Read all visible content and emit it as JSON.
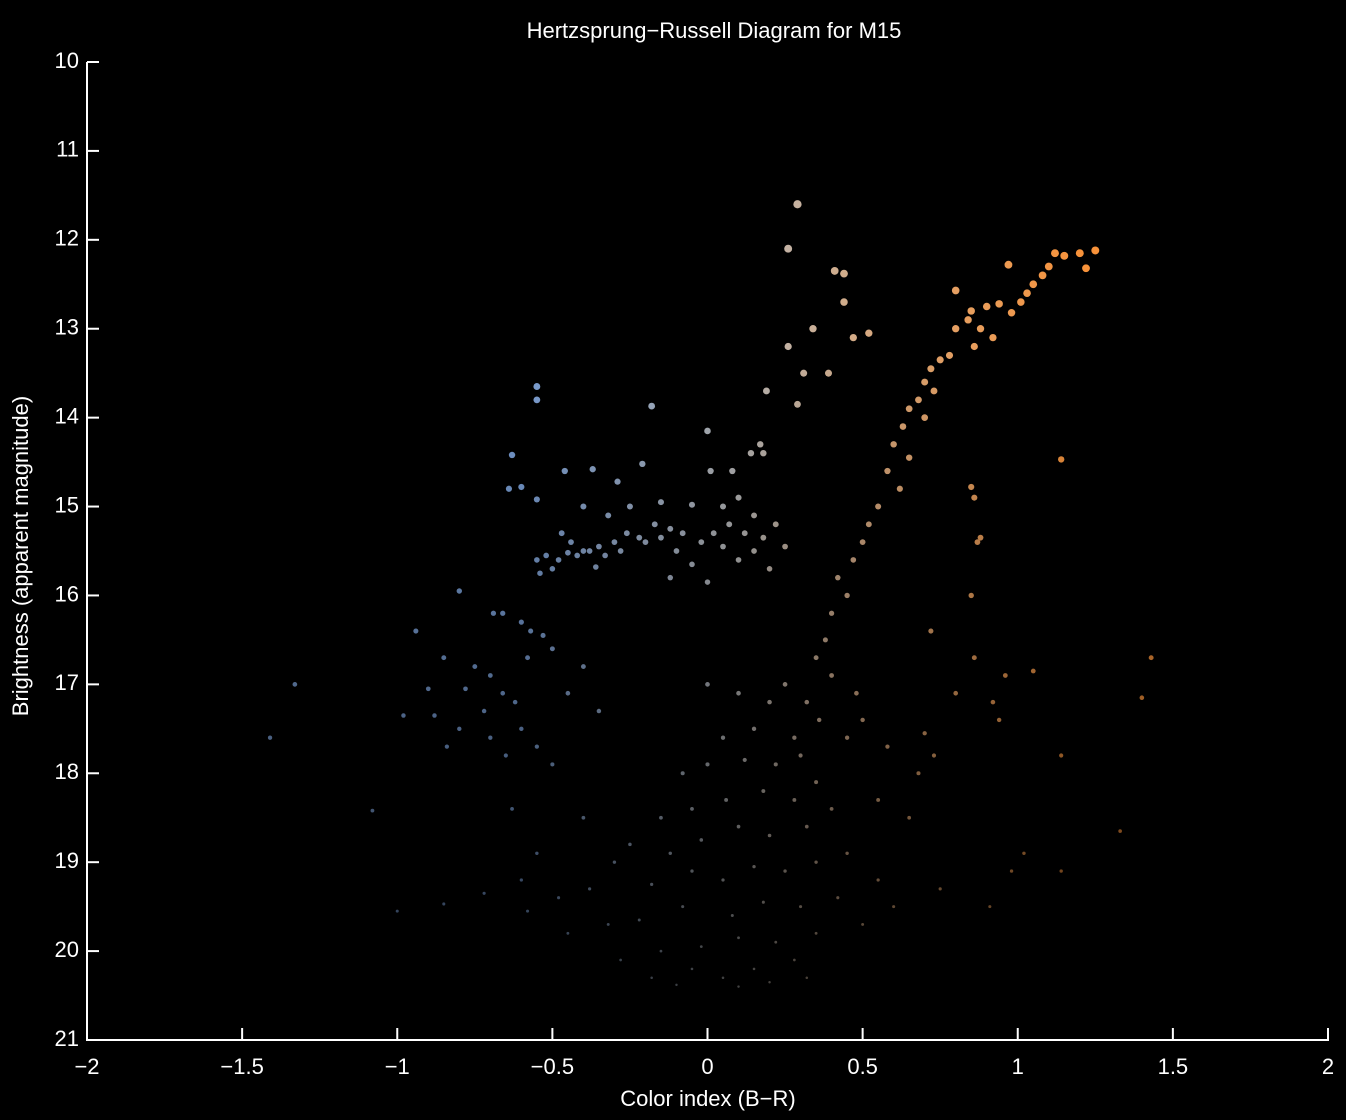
{
  "chart_data": {
    "type": "scatter",
    "title": "Hertzsprung−Russell Diagram for M15",
    "x_label": "Color index (B−R)",
    "y_label": "Brightness (apparent magnitude)",
    "xlim": [
      -2,
      2
    ],
    "ylim": [
      10,
      21
    ],
    "y_inverted": true,
    "xticks": [
      {
        "value": -2,
        "label": "−2"
      },
      {
        "value": -1.5,
        "label": "−1.5"
      },
      {
        "value": -1,
        "label": "−1"
      },
      {
        "value": -0.5,
        "label": "−0.5"
      },
      0,
      0.5,
      1,
      1.5,
      2
    ],
    "yticks": [
      10,
      11,
      12,
      13,
      14,
      15,
      16,
      17,
      18,
      19,
      20,
      21
    ],
    "colormap": [
      {
        "value": -0.6,
        "color": "#7a9fd6"
      },
      {
        "value": 0.1,
        "color": "#b8b8b8"
      },
      {
        "value": 0.6,
        "color": "#dca676"
      },
      {
        "value": 1.2,
        "color": "#f7923a"
      }
    ],
    "x": [
      0.29,
      0.26,
      0.41,
      0.44,
      0.44,
      0.34,
      0.26,
      0.52,
      0.47,
      0.31,
      0.39,
      0.19,
      0.29,
      0.0,
      -0.55,
      -0.55,
      -0.18,
      -0.63,
      -0.37,
      -0.46,
      -0.21,
      -0.64,
      -0.6,
      -0.55,
      -0.29,
      0.01,
      0.08,
      0.14,
      0.18,
      0.17,
      1.25,
      1.2,
      1.15,
      1.12,
      1.22,
      1.1,
      1.08,
      1.05,
      0.97,
      1.03,
      1.01,
      0.94,
      0.98,
      0.9,
      0.85,
      0.8,
      0.84,
      0.88,
      0.92,
      0.8,
      0.86,
      0.78,
      0.75,
      0.72,
      0.7,
      0.73,
      0.68,
      0.65,
      0.7,
      0.63,
      0.6,
      0.65,
      0.58,
      0.62,
      0.55,
      0.52,
      0.5,
      0.47,
      0.42,
      0.45,
      0.4,
      0.38,
      0.35,
      0.4,
      0.32,
      0.36,
      0.28,
      1.14,
      0.85,
      0.86,
      0.88,
      0.87,
      0.85,
      0.72,
      0.86,
      0.96,
      1.05,
      1.43,
      1.4,
      0.8,
      0.92,
      0.94,
      1.14,
      1.33,
      1.02,
      1.14,
      0.98,
      0.91,
      0.73,
      0.7,
      -0.55,
      -0.52,
      -0.48,
      -0.45,
      -0.42,
      -0.4,
      -0.38,
      -0.35,
      -0.33,
      -0.3,
      -0.28,
      -0.26,
      -0.22,
      -0.2,
      -0.17,
      -0.15,
      -0.12,
      -0.1,
      -0.08,
      -0.05,
      -0.02,
      0.02,
      0.05,
      0.07,
      0.1,
      0.12,
      0.15,
      0.18,
      0.2,
      0.22,
      0.25,
      -0.54,
      -0.5,
      -0.44,
      -0.47,
      -0.36,
      -0.25,
      -0.15,
      -0.05,
      0.05,
      0.1,
      0.15,
      -0.32,
      -0.4,
      -0.12,
      0.0,
      -0.8,
      -0.69,
      -0.66,
      -0.6,
      -0.57,
      -0.53,
      -0.5,
      -0.58,
      -0.94,
      -0.85,
      -0.75,
      -0.7,
      -0.78,
      -0.9,
      -0.66,
      -0.62,
      -0.72,
      -0.88,
      -0.98,
      -0.8,
      -0.6,
      -0.55,
      -0.84,
      -0.7,
      -0.65,
      -0.5,
      -0.35,
      -1.33,
      -1.41,
      -1.08,
      -0.63,
      -0.4,
      -0.45,
      0.0,
      0.1,
      0.2,
      0.25,
      0.15,
      0.05,
      0.3,
      0.22,
      0.12,
      0.0,
      -0.08,
      0.35,
      0.28,
      0.18,
      0.06,
      -0.05,
      -0.15,
      0.4,
      0.32,
      0.2,
      0.1,
      -0.02,
      -0.12,
      -0.25,
      -0.3,
      0.45,
      0.35,
      0.25,
      0.15,
      0.05,
      -0.05,
      -0.18,
      -0.38,
      -0.48,
      -0.58,
      0.55,
      0.42,
      0.3,
      0.18,
      0.08,
      -0.08,
      -0.22,
      -0.32,
      -0.45,
      0.5,
      0.35,
      0.22,
      0.1,
      -0.02,
      -0.15,
      -0.28,
      0.28,
      0.15,
      0.05,
      -0.05,
      -0.18,
      0.2,
      0.32,
      -0.1,
      0.1,
      0.6,
      0.65,
      0.68,
      0.58,
      0.5,
      0.48,
      -0.4,
      -0.55,
      -0.6,
      -0.72,
      -0.85,
      -1.0,
      0.75,
      0.55,
      0.45
    ],
    "y": [
      11.6,
      12.1,
      12.35,
      12.38,
      12.7,
      13.0,
      13.2,
      13.05,
      13.1,
      13.5,
      13.5,
      13.7,
      13.85,
      14.15,
      13.65,
      13.8,
      13.87,
      14.42,
      14.58,
      14.6,
      14.52,
      14.8,
      14.78,
      14.92,
      14.72,
      14.6,
      14.6,
      14.4,
      14.4,
      14.3,
      12.12,
      12.15,
      12.18,
      12.15,
      12.32,
      12.3,
      12.4,
      12.5,
      12.28,
      12.6,
      12.7,
      12.72,
      12.82,
      12.75,
      12.8,
      12.57,
      12.9,
      13.0,
      13.1,
      13.0,
      13.2,
      13.3,
      13.35,
      13.45,
      13.6,
      13.7,
      13.8,
      13.9,
      14.0,
      14.1,
      14.3,
      14.45,
      14.6,
      14.8,
      15.0,
      15.2,
      15.4,
      15.6,
      15.8,
      16.0,
      16.2,
      16.5,
      16.7,
      16.9,
      17.2,
      17.4,
      17.6,
      14.47,
      14.78,
      14.9,
      15.35,
      15.4,
      16.0,
      16.4,
      16.7,
      16.9,
      16.85,
      16.7,
      17.15,
      17.1,
      17.2,
      17.4,
      17.8,
      18.65,
      18.9,
      19.1,
      19.1,
      19.5,
      17.8,
      17.55,
      15.6,
      15.55,
      15.6,
      15.52,
      15.55,
      15.5,
      15.5,
      15.45,
      15.55,
      15.4,
      15.5,
      15.3,
      15.35,
      15.4,
      15.2,
      15.35,
      15.25,
      15.5,
      15.3,
      15.65,
      15.4,
      15.3,
      15.45,
      15.2,
      15.6,
      15.3,
      15.5,
      15.35,
      15.7,
      15.2,
      15.45,
      15.75,
      15.7,
      15.4,
      15.3,
      15.68,
      15.0,
      14.95,
      14.98,
      15.0,
      14.9,
      15.1,
      15.1,
      15.0,
      15.8,
      15.85,
      15.95,
      16.2,
      16.2,
      16.3,
      16.4,
      16.45,
      16.6,
      16.7,
      16.4,
      16.7,
      16.8,
      16.9,
      17.05,
      17.05,
      17.1,
      17.2,
      17.3,
      17.35,
      17.35,
      17.5,
      17.5,
      17.7,
      17.7,
      17.6,
      17.8,
      17.9,
      17.3,
      17.0,
      17.6,
      18.42,
      18.4,
      16.8,
      17.1,
      17.0,
      17.1,
      17.2,
      17.0,
      17.5,
      17.6,
      17.8,
      17.9,
      17.85,
      17.9,
      18.0,
      18.1,
      18.3,
      18.2,
      18.3,
      18.4,
      18.5,
      18.4,
      18.6,
      18.7,
      18.6,
      18.75,
      18.9,
      18.8,
      19.0,
      18.9,
      19.0,
      19.1,
      19.05,
      19.2,
      19.1,
      19.25,
      19.3,
      19.4,
      19.55,
      19.2,
      19.4,
      19.5,
      19.45,
      19.6,
      19.5,
      19.65,
      19.7,
      19.8,
      19.7,
      19.8,
      19.9,
      19.85,
      19.95,
      20.0,
      20.1,
      20.1,
      20.2,
      20.3,
      20.2,
      20.3,
      20.35,
      20.3,
      20.38,
      20.4,
      19.5,
      18.5,
      18.0,
      17.7,
      17.4,
      17.1,
      18.5,
      18.9,
      19.2,
      19.35,
      19.47,
      19.55,
      19.3,
      18.3,
      17.6
    ]
  }
}
